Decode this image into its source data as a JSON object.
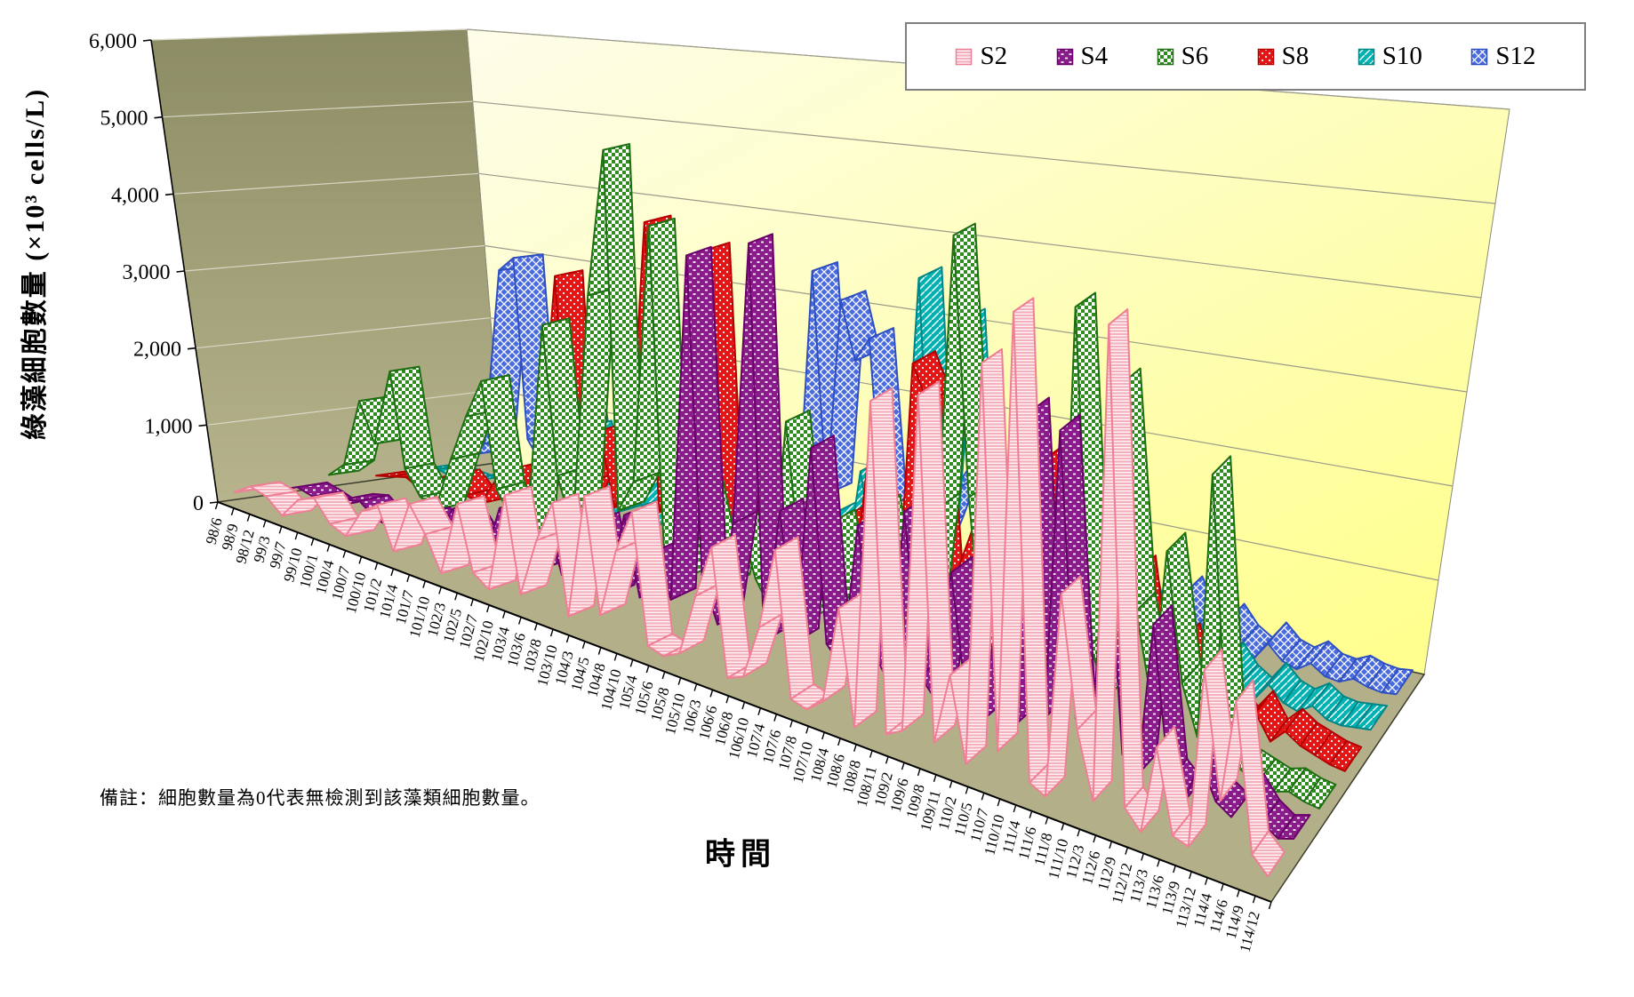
{
  "note": "備註：細胞數量為0代表無檢測到該藻類細胞數量。",
  "legend": {
    "position": "top-right",
    "border_color": "#7f7f7f",
    "background": "#ffffff"
  },
  "colors": {
    "left_wall_top": "#8c8c64",
    "left_wall_bottom": "#b7b48d",
    "back_wall_light": "#fdfdea",
    "back_wall_yellow": "#ffff8f",
    "floor": "#b3b089",
    "gridline_back": "#9a9a8a",
    "gridline_left": "#d8d8c8",
    "axis": "#000000"
  },
  "chart_data": {
    "type": "line",
    "sub_type": "3d-ribbon",
    "title": "",
    "xlabel": "時間",
    "ylabel": "綠藻細胞數量 (×10³ cells/L)",
    "ylim": [
      0,
      6000
    ],
    "y_tick_step": 1000,
    "y_tick_labels": [
      "0",
      "1,000",
      "2,000",
      "3,000",
      "4,000",
      "5,000",
      "6,000"
    ],
    "grid": true,
    "legend_position": "top-right",
    "categories": [
      "98/6",
      "98/9",
      "98/12",
      "99/3",
      "99/7",
      "99/10",
      "100/1",
      "100/4",
      "100/7",
      "100/10",
      "101/2",
      "101/4",
      "101/7",
      "101/10",
      "102/3",
      "102/5",
      "102/7",
      "102/10",
      "103/4",
      "103/6",
      "103/8",
      "103/10",
      "104/3",
      "104/5",
      "104/8",
      "104/10",
      "105/4",
      "105/6",
      "105/8",
      "105/10",
      "106/3",
      "106/6",
      "106/8",
      "106/10",
      "107/4",
      "107/6",
      "107/8",
      "107/10",
      "108/4",
      "108/6",
      "108/8",
      "108/11",
      "109/2",
      "109/6",
      "109/8",
      "109/11",
      "110/2",
      "110/5",
      "110/7",
      "110/10",
      "111/4",
      "111/6",
      "111/8",
      "111/10",
      "112/3",
      "112/6",
      "112/9",
      "112/12",
      "113/3",
      "113/6",
      "113/9",
      "113/12",
      "114/4",
      "114/6",
      "114/9",
      "114/12"
    ],
    "series": [
      {
        "name": "S2",
        "edge": "#ee7f94",
        "pattern": "stripes",
        "fill_bg": "#ffffff",
        "fill_fg": "#f5aebc",
        "values": [
          150,
          300,
          250,
          80,
          350,
          450,
          200,
          120,
          500,
          650,
          150,
          800,
          500,
          100,
          1000,
          250,
          120,
          1300,
          200,
          900,
          1400,
          150,
          1600,
          300,
          1100,
          1600,
          150,
          100,
          200,
          900,
          1500,
          120,
          200,
          800,
          1700,
          150,
          100,
          250,
          1300,
          100,
          3600,
          150,
          250,
          3800,
          250,
          1000,
          150,
          4300,
          400,
          4900,
          200,
          120,
          2200,
          900,
          250,
          5000,
          300,
          120,
          1000,
          200,
          150,
          1900,
          700,
          1700,
          300,
          150
        ]
      },
      {
        "name": "S4",
        "edge": "#6a006a",
        "pattern": "dash",
        "fill_bg": "#8a1b8a",
        "fill_fg": "#ffffff",
        "values": [
          100,
          200,
          150,
          80,
          250,
          300,
          150,
          100,
          300,
          400,
          200,
          600,
          350,
          100,
          800,
          300,
          150,
          900,
          250,
          700,
          1000,
          200,
          1200,
          300,
          900,
          400,
          4400,
          800,
          300,
          1500,
          4700,
          300,
          1800,
          400,
          2600,
          500,
          300,
          1900,
          600,
          300,
          2200,
          500,
          300,
          1700,
          400,
          250,
          1500,
          300,
          3600,
          500,
          3500,
          600,
          300,
          2900,
          400,
          250,
          1800,
          300,
          150,
          600,
          250,
          150,
          400,
          200,
          100,
          150
        ]
      },
      {
        "name": "S6",
        "edge": "#1d6f12",
        "pattern": "checker",
        "fill_bg": "#ffffff",
        "fill_fg": "#2e8b1e",
        "values": [
          200,
          400,
          1300,
          800,
          1800,
          600,
          300,
          200,
          900,
          1500,
          2000,
          700,
          400,
          250,
          2900,
          1100,
          500,
          3400,
          5200,
          900,
          1300,
          4400,
          600,
          300,
          1600,
          800,
          400,
          1200,
          600,
          300,
          2500,
          800,
          400,
          1500,
          700,
          300,
          1800,
          900,
          400,
          600,
          2000,
          5000,
          2200,
          500,
          2600,
          700,
          900,
          400,
          400,
          4500,
          1000,
          500,
          3800,
          1500,
          600,
          2200,
          900,
          400,
          3100,
          300,
          200,
          150,
          100,
          150,
          100,
          80
        ]
      },
      {
        "name": "S8",
        "edge": "#b30000",
        "pattern": "dots",
        "fill_bg": "#e31515",
        "fill_fg": "#ffffff",
        "values": [
          100,
          150,
          200,
          100,
          300,
          400,
          200,
          150,
          500,
          700,
          300,
          900,
          3300,
          400,
          800,
          1500,
          600,
          1000,
          4200,
          700,
          1200,
          3600,
          4000,
          500,
          800,
          1800,
          400,
          900,
          1500,
          500,
          700,
          1200,
          400,
          2000,
          800,
          400,
          3200,
          2800,
          500,
          1000,
          1500,
          400,
          800,
          1200,
          300,
          2500,
          600,
          300,
          1800,
          400,
          900,
          1500,
          300,
          600,
          900,
          400,
          700,
          300,
          200,
          400,
          150,
          300,
          200,
          150,
          100,
          80
        ]
      },
      {
        "name": "S10",
        "edge": "#008585",
        "pattern": "diag",
        "fill_bg": "#00b2b2",
        "fill_fg": "#ffffff",
        "values": [
          100,
          150,
          100,
          80,
          200,
          300,
          150,
          100,
          400,
          800,
          300,
          1200,
          600,
          200,
          900,
          400,
          200,
          1500,
          500,
          800,
          1200,
          300,
          1800,
          400,
          700,
          1000,
          300,
          600,
          900,
          300,
          1500,
          500,
          300,
          1200,
          3900,
          600,
          2800,
          3500,
          400,
          800,
          1900,
          600,
          1500,
          400,
          300,
          800,
          300,
          600,
          400,
          900,
          300,
          200,
          500,
          250,
          150,
          400,
          200,
          100,
          300,
          150,
          100,
          200,
          100,
          80,
          100,
          120
        ]
      },
      {
        "name": "S12",
        "edge": "#2e4fc0",
        "pattern": "cross",
        "fill_bg": "#4a6be0",
        "fill_fg": "#ffffff",
        "values": [
          200,
          400,
          2800,
          3000,
          600,
          300,
          800,
          1800,
          400,
          250,
          600,
          900,
          400,
          200,
          800,
          400,
          200,
          1000,
          500,
          700,
          900,
          300,
          1200,
          500,
          3500,
          800,
          3200,
          2500,
          2800,
          600,
          900,
          400,
          250,
          700,
          1200,
          1500,
          800,
          1300,
          400,
          250,
          600,
          900,
          800,
          400,
          300,
          500,
          250,
          150,
          400,
          200,
          600,
          300,
          150,
          400,
          200,
          100,
          300,
          150,
          100,
          200,
          100,
          80,
          150,
          100,
          80,
          100
        ]
      }
    ]
  }
}
